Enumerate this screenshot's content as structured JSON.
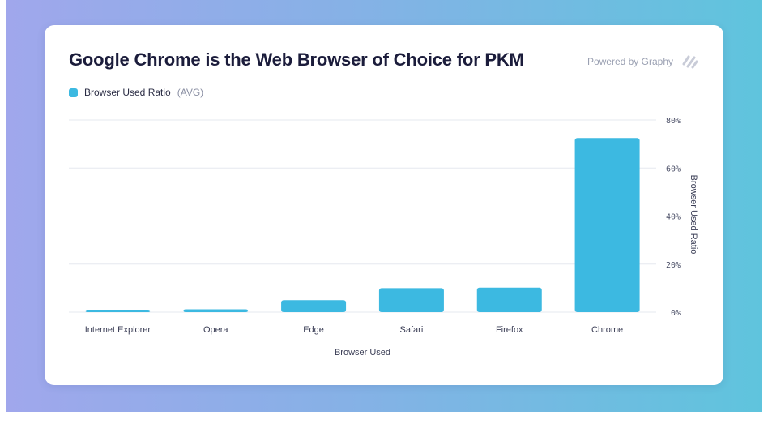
{
  "page": {
    "powered_by": "Powered by Graphy",
    "legend_label": "Browser Used Ratio",
    "legend_suffix": "(AVG)"
  },
  "colors": {
    "bar": "#3cb9e1",
    "grid": "#e6e8ef",
    "title": "#1b1c3b"
  },
  "icons": {
    "brand": "graphy-logo-icon"
  },
  "chart_data": {
    "type": "bar",
    "title": "Google Chrome is the Web Browser of Choice for PKM",
    "xlabel": "Browser Used",
    "ylabel": "Browser Used Ratio",
    "categories": [
      "Internet Explorer",
      "Opera",
      "Edge",
      "Safari",
      "Firefox",
      "Chrome"
    ],
    "series": [
      {
        "name": "Browser Used Ratio",
        "values": [
          1,
          1.2,
          5,
          10,
          10.2,
          72.5
        ]
      }
    ],
    "ylim": [
      0,
      80
    ],
    "yticks": [
      0,
      20,
      40,
      60,
      80
    ],
    "ytick_labels": [
      "0%",
      "20%",
      "40%",
      "60%",
      "80%"
    ],
    "y_axis_side": "right",
    "grid": true,
    "legend": "top-left"
  }
}
